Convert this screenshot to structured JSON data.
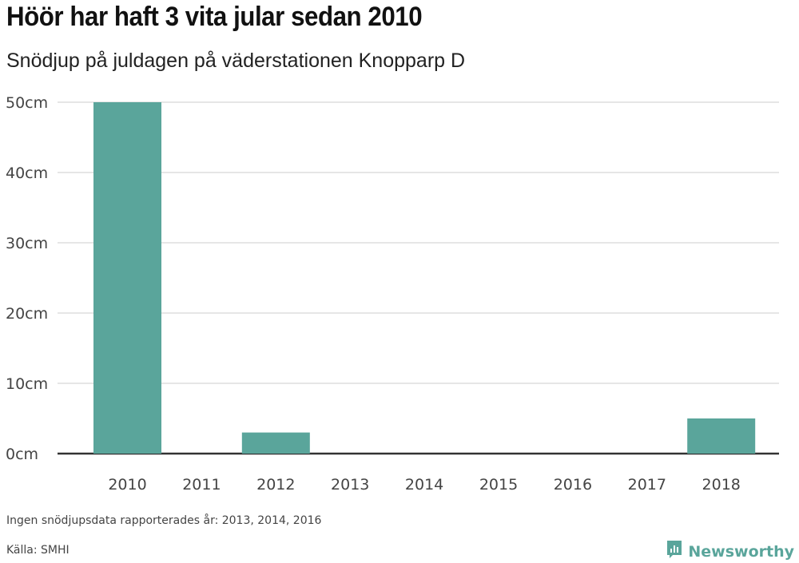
{
  "header": {
    "title": "Höör har haft 3 vita jular sedan 2010",
    "subtitle": "Snödjup på juldagen på väderstationen Knopparp D"
  },
  "footer": {
    "note": "Ingen snödjupsdata rapporterades år: 2013, 2014, 2016",
    "source": "Källa: SMHI",
    "brand": "Newsworthy",
    "brand_icon": "newsworthy-logo-icon",
    "brand_color": "#5aa59b"
  },
  "chart_data": {
    "type": "bar",
    "categories": [
      "2010",
      "2011",
      "2012",
      "2013",
      "2014",
      "2015",
      "2016",
      "2017",
      "2018"
    ],
    "values": [
      50,
      0,
      3,
      null,
      null,
      0,
      null,
      0,
      5
    ],
    "ylim": [
      0,
      50
    ],
    "yticks": [
      0,
      10,
      20,
      30,
      40,
      50
    ],
    "ytick_labels": [
      "0cm",
      "10cm",
      "20cm",
      "30cm",
      "40cm",
      "50cm"
    ],
    "bar_color": "#5aa59b",
    "grid": true
  }
}
